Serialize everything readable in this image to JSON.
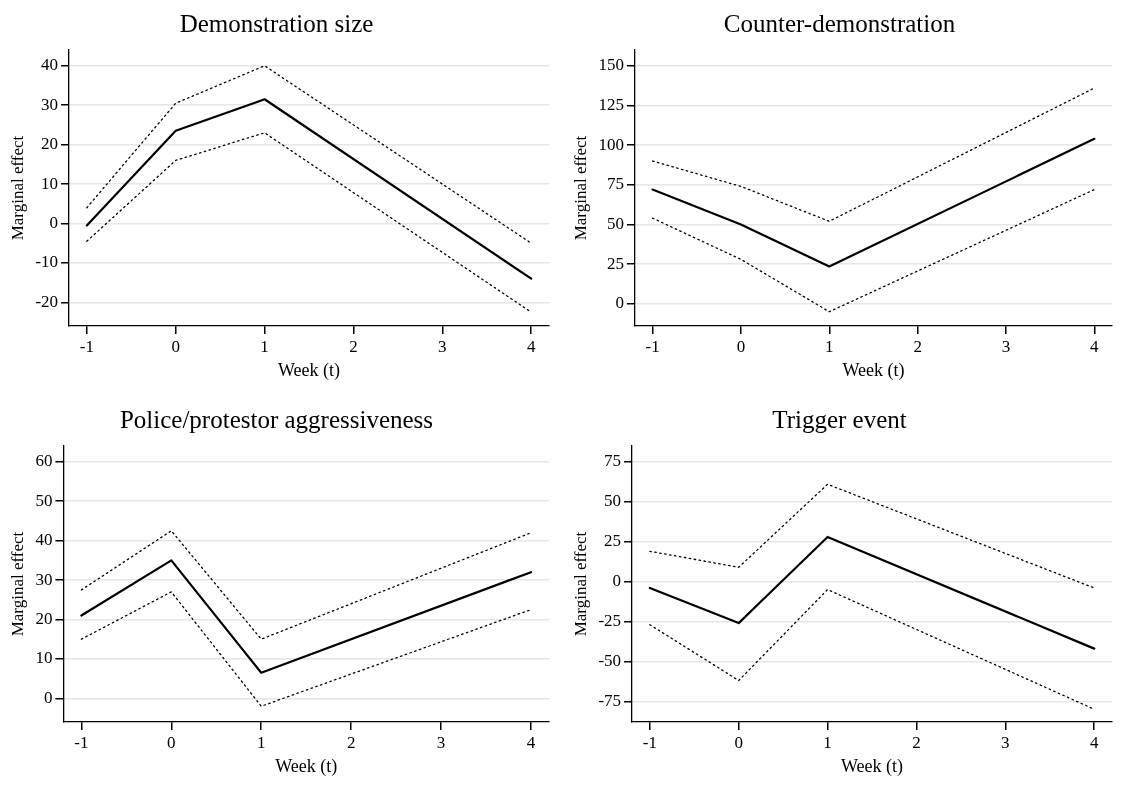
{
  "chart_data": [
    {
      "type": "line",
      "title": "Demonstration size",
      "xlabel": "Week (t)",
      "ylabel": "Marginal effect",
      "x": [
        -1,
        0,
        1,
        4
      ],
      "xlim": [
        -1.2,
        4.2
      ],
      "xticks": [
        -1,
        0,
        1,
        2,
        3,
        4
      ],
      "ylim": [
        -26,
        44
      ],
      "yticks": [
        -20,
        -10,
        0,
        10,
        20,
        30,
        40
      ],
      "grid": "y",
      "marker": "none",
      "legend": false,
      "series": [
        {
          "color": "#000000",
          "line_style": "solid",
          "values": [
            -0.5,
            23.5,
            31.5,
            -14
          ]
        },
        {
          "color": "#000000",
          "line_style": "dotted",
          "values": [
            4,
            30.5,
            40,
            -5
          ]
        },
        {
          "color": "#000000",
          "line_style": "dotted",
          "values": [
            -4.5,
            16,
            23,
            -22.5
          ]
        }
      ]
    },
    {
      "type": "line",
      "title": "Counter-demonstration",
      "xlabel": "Week (t)",
      "ylabel": "Marginal effect",
      "x": [
        -1,
        0,
        1,
        4
      ],
      "xlim": [
        -1.2,
        4.2
      ],
      "xticks": [
        -1,
        0,
        1,
        2,
        3,
        4
      ],
      "ylim": [
        -14,
        160
      ],
      "yticks": [
        0,
        25,
        50,
        75,
        100,
        125,
        150
      ],
      "grid": "y",
      "marker": "none",
      "legend": false,
      "series": [
        {
          "color": "#000000",
          "line_style": "solid",
          "values": [
            72,
            50,
            23.5,
            104
          ]
        },
        {
          "color": "#000000",
          "line_style": "dotted",
          "values": [
            90,
            74,
            52,
            136
          ]
        },
        {
          "color": "#000000",
          "line_style": "dotted",
          "values": [
            54,
            28,
            -5,
            72
          ]
        }
      ]
    },
    {
      "type": "line",
      "title": "Police/protestor aggressiveness",
      "xlabel": "Week (t)",
      "ylabel": "Marginal effect",
      "x": [
        -1,
        0,
        1,
        4
      ],
      "xlim": [
        -1.2,
        4.2
      ],
      "xticks": [
        -1,
        0,
        1,
        2,
        3,
        4
      ],
      "ylim": [
        -6,
        64
      ],
      "yticks": [
        0,
        10,
        20,
        30,
        40,
        50,
        60
      ],
      "grid": "y",
      "marker": "none",
      "legend": false,
      "series": [
        {
          "color": "#000000",
          "line_style": "solid",
          "values": [
            21,
            35,
            6.5,
            32
          ]
        },
        {
          "color": "#000000",
          "line_style": "dotted",
          "values": [
            27.5,
            42.5,
            15,
            42
          ]
        },
        {
          "color": "#000000",
          "line_style": "dotted",
          "values": [
            15,
            27,
            -2,
            22.5
          ]
        }
      ]
    },
    {
      "type": "line",
      "title": "Trigger event",
      "xlabel": "Week (t)",
      "ylabel": "Marginal effect",
      "x": [
        -1,
        0,
        1,
        4
      ],
      "xlim": [
        -1.2,
        4.2
      ],
      "xticks": [
        -1,
        0,
        1,
        2,
        3,
        4
      ],
      "ylim": [
        -88,
        85
      ],
      "yticks": [
        -75,
        -50,
        -25,
        0,
        25,
        50,
        75
      ],
      "grid": "y",
      "marker": "none",
      "legend": false,
      "series": [
        {
          "color": "#000000",
          "line_style": "solid",
          "values": [
            -4,
            -26,
            28,
            -42
          ]
        },
        {
          "color": "#000000",
          "line_style": "dotted",
          "values": [
            19,
            9,
            61,
            -4
          ]
        },
        {
          "color": "#000000",
          "line_style": "dotted",
          "values": [
            -27,
            -62,
            -5,
            -80
          ]
        }
      ]
    }
  ]
}
